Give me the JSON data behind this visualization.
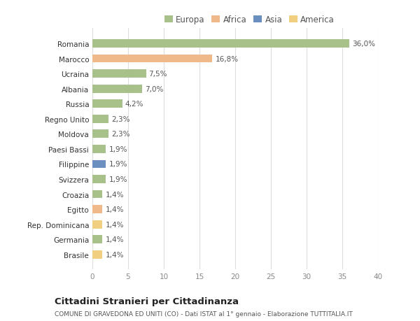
{
  "countries": [
    "Romania",
    "Marocco",
    "Ucraina",
    "Albania",
    "Russia",
    "Regno Unito",
    "Moldova",
    "Paesi Bassi",
    "Filippine",
    "Svizzera",
    "Croazia",
    "Egitto",
    "Rep. Dominicana",
    "Germania",
    "Brasile"
  ],
  "values": [
    36.0,
    16.8,
    7.5,
    7.0,
    4.2,
    2.3,
    2.3,
    1.9,
    1.9,
    1.9,
    1.4,
    1.4,
    1.4,
    1.4,
    1.4
  ],
  "labels": [
    "36,0%",
    "16,8%",
    "7,5%",
    "7,0%",
    "4,2%",
    "2,3%",
    "2,3%",
    "1,9%",
    "1,9%",
    "1,9%",
    "1,4%",
    "1,4%",
    "1,4%",
    "1,4%",
    "1,4%"
  ],
  "colors": [
    "#a8c08a",
    "#f0b98a",
    "#a8c08a",
    "#a8c08a",
    "#a8c08a",
    "#a8c08a",
    "#a8c08a",
    "#a8c08a",
    "#6b8fbf",
    "#a8c08a",
    "#a8c08a",
    "#f0b98a",
    "#f0d080",
    "#a8c08a",
    "#f0d080"
  ],
  "legend_labels": [
    "Europa",
    "Africa",
    "Asia",
    "America"
  ],
  "legend_colors": [
    "#a8c08a",
    "#f0b98a",
    "#6b8fbf",
    "#f0d080"
  ],
  "title": "Cittadini Stranieri per Cittadinanza",
  "subtitle": "COMUNE DI GRAVEDONA ED UNITI (CO) - Dati ISTAT al 1° gennaio - Elaborazione TUTTITALIA.IT",
  "xlim": [
    0,
    40
  ],
  "xticks": [
    0,
    5,
    10,
    15,
    20,
    25,
    30,
    35,
    40
  ],
  "bg_color": "#ffffff",
  "grid_color": "#dddddd"
}
